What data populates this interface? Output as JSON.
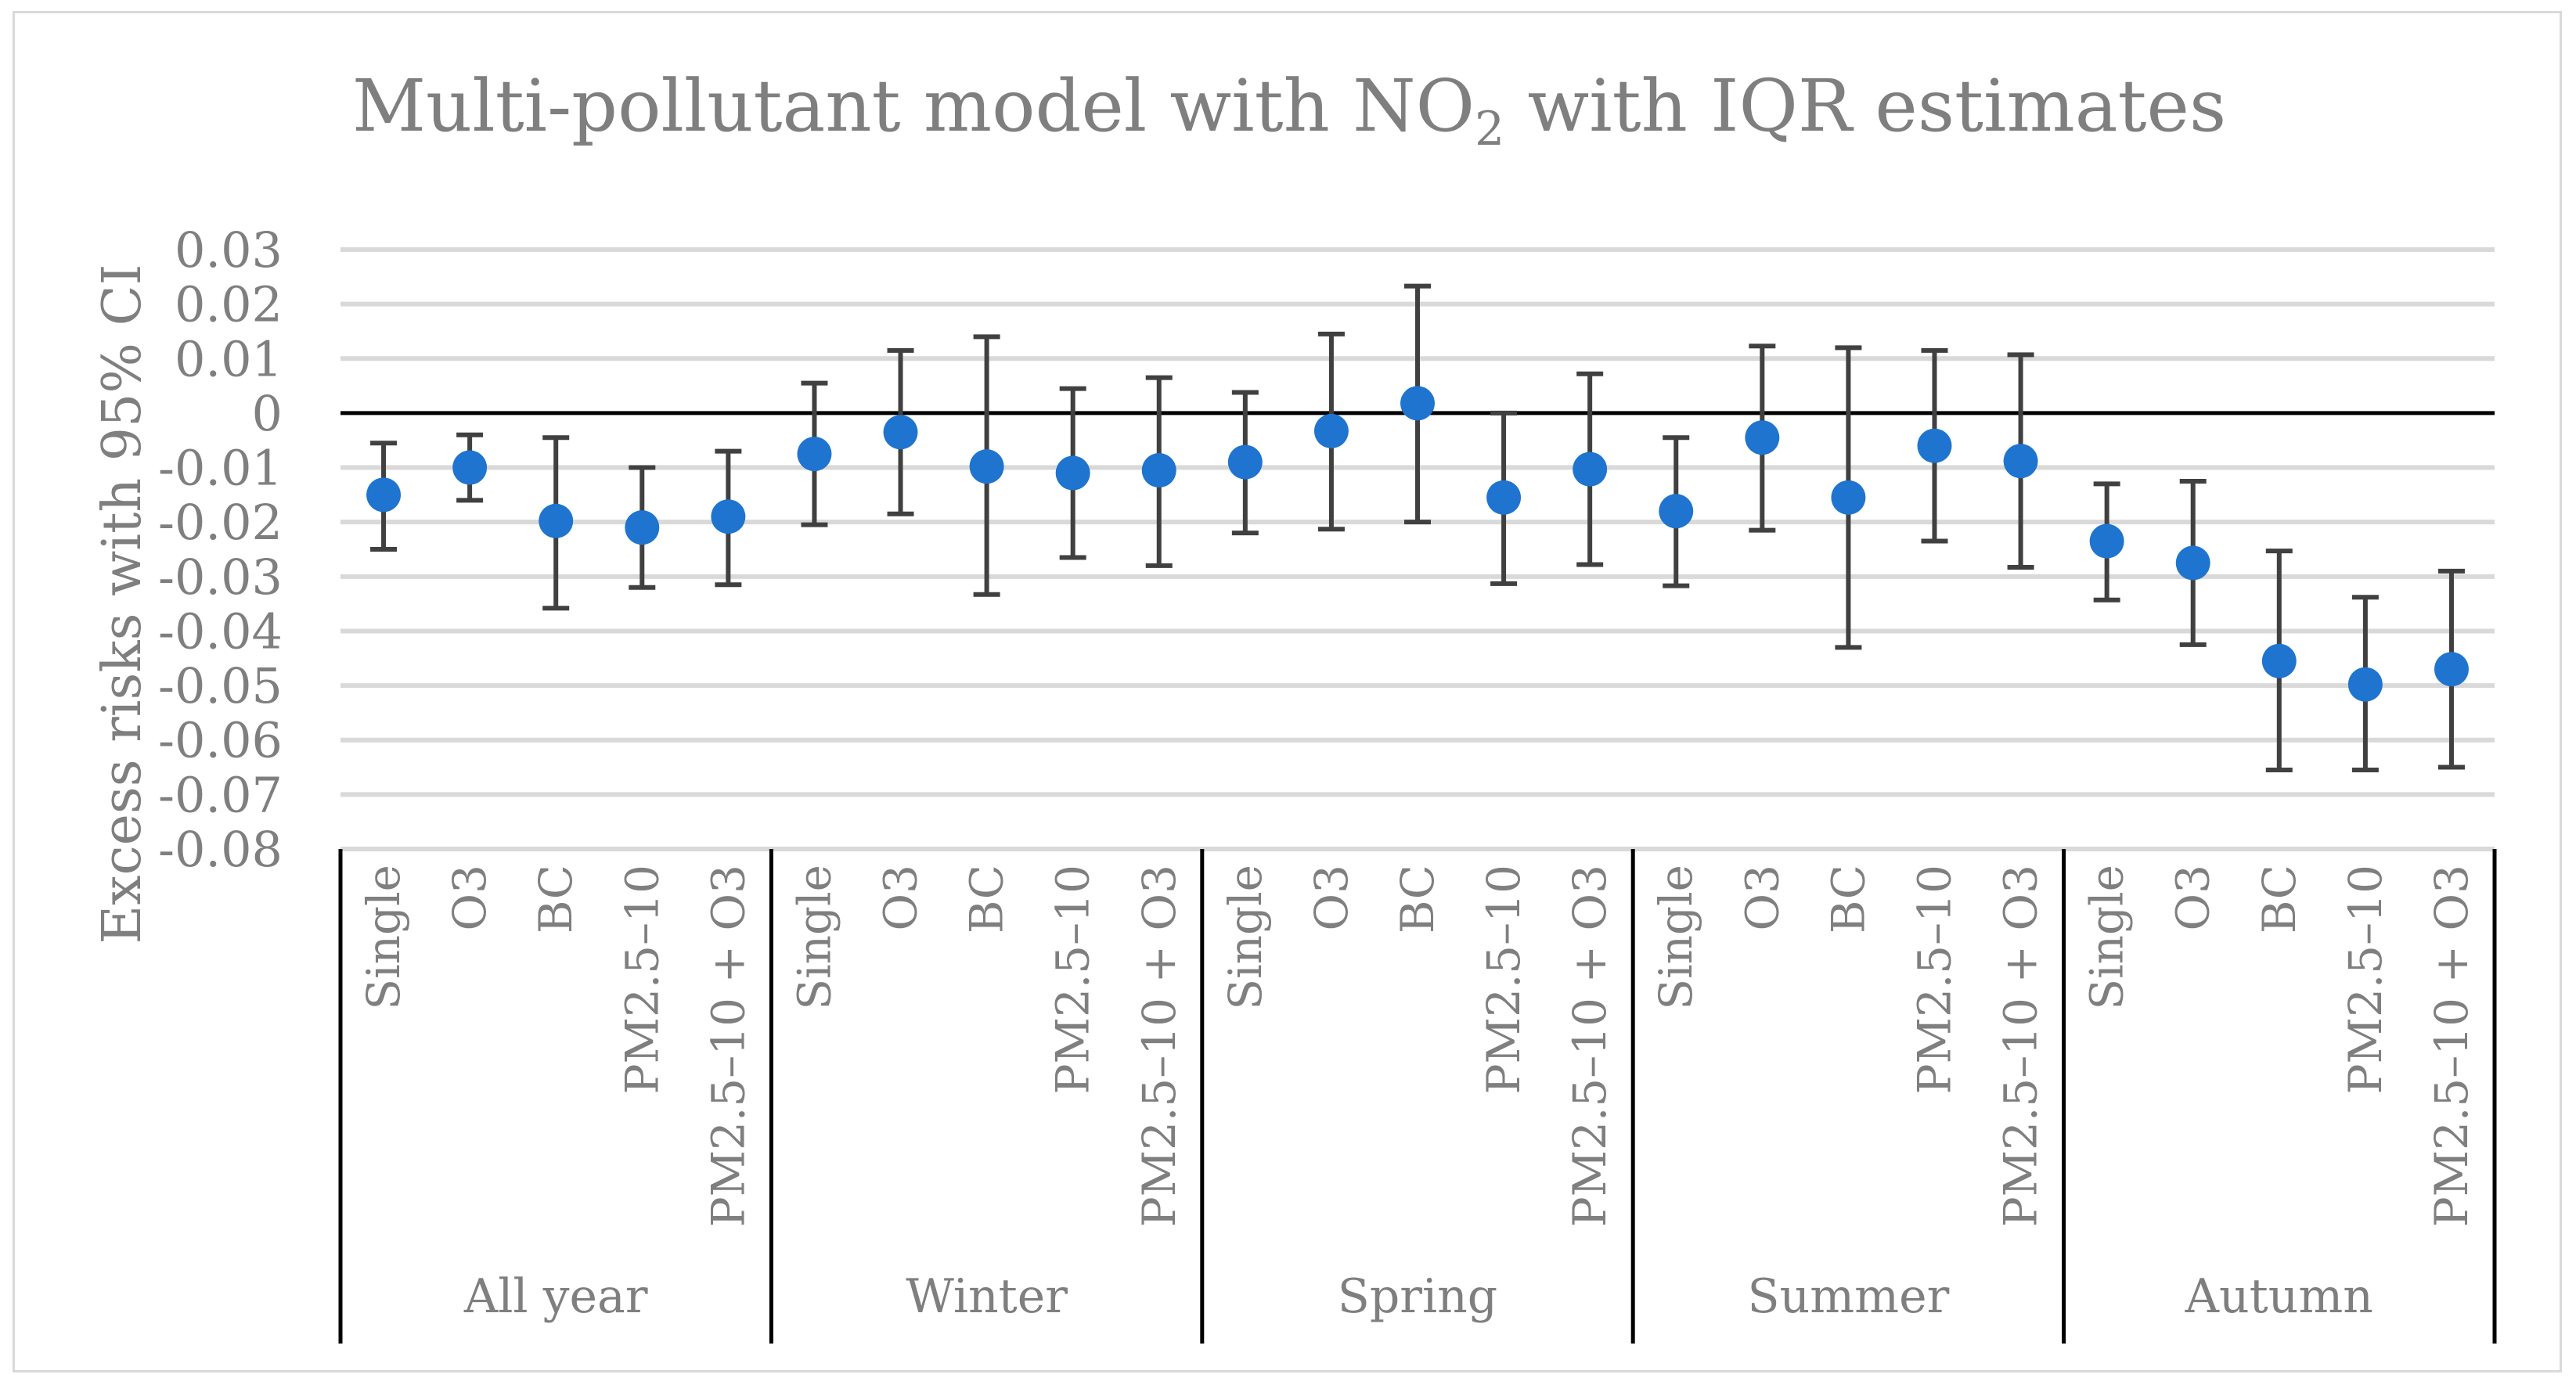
{
  "chart_data": {
    "type": "scatter",
    "title_main": "Multi-pollutant model with NO",
    "title_sub": "2",
    "title_tail": " with IQR estimates",
    "ylabel": "Excess risks with 95% CI",
    "xlabel": "",
    "ylim": [
      -0.08,
      0.03
    ],
    "yticks": [
      0.03,
      0.02,
      0.01,
      0,
      -0.01,
      -0.02,
      -0.03,
      -0.04,
      -0.05,
      -0.06,
      -0.07,
      -0.08
    ],
    "ytick_labels": [
      "0.03",
      "0.02",
      "0.01",
      "0",
      "-0.01",
      "-0.02",
      "-0.03",
      "-0.04",
      "-0.05",
      "-0.06",
      "-0.07",
      "-0.08"
    ],
    "grid": true,
    "colors": {
      "point": "#1f74d0",
      "errorbar": "#404040",
      "grid": "#d9d9d9",
      "text": "#7f7f7f"
    },
    "groups": [
      {
        "name": "All year",
        "points": [
          {
            "label": "Single",
            "estimate": -0.015,
            "lower": -0.025,
            "upper": -0.0055
          },
          {
            "label": "O3",
            "estimate": -0.01,
            "lower": -0.016,
            "upper": -0.004
          },
          {
            "label": "BC",
            "estimate": -0.0198,
            "lower": -0.0358,
            "upper": -0.0045
          },
          {
            "label": "PM2.5–10",
            "estimate": -0.021,
            "lower": -0.032,
            "upper": -0.01
          },
          {
            "label": "PM2.5–10 + O3",
            "estimate": -0.019,
            "lower": -0.0315,
            "upper": -0.007
          }
        ]
      },
      {
        "name": "Winter",
        "points": [
          {
            "label": "Single",
            "estimate": -0.0075,
            "lower": -0.0205,
            "upper": 0.0055
          },
          {
            "label": "O3",
            "estimate": -0.0035,
            "lower": -0.0185,
            "upper": 0.0115
          },
          {
            "label": "BC",
            "estimate": -0.0098,
            "lower": -0.0333,
            "upper": 0.014
          },
          {
            "label": "PM2.5–10",
            "estimate": -0.011,
            "lower": -0.0265,
            "upper": 0.0045
          },
          {
            "label": "PM2.5–10 + O3",
            "estimate": -0.0105,
            "lower": -0.028,
            "upper": 0.0065
          }
        ]
      },
      {
        "name": "Spring",
        "points": [
          {
            "label": "Single",
            "estimate": -0.009,
            "lower": -0.022,
            "upper": 0.0038
          },
          {
            "label": "O3",
            "estimate": -0.0033,
            "lower": -0.0213,
            "upper": 0.0145
          },
          {
            "label": "BC",
            "estimate": 0.0018,
            "lower": -0.02,
            "upper": 0.0233
          },
          {
            "label": "PM2.5–10",
            "estimate": -0.0155,
            "lower": -0.0313,
            "upper": 0.0
          },
          {
            "label": "PM2.5–10 + O3",
            "estimate": -0.0103,
            "lower": -0.0278,
            "upper": 0.0072
          }
        ]
      },
      {
        "name": "Summer",
        "points": [
          {
            "label": "Single",
            "estimate": -0.018,
            "lower": -0.0317,
            "upper": -0.0045
          },
          {
            "label": "O3",
            "estimate": -0.0045,
            "lower": -0.0215,
            "upper": 0.0123
          },
          {
            "label": "BC",
            "estimate": -0.0155,
            "lower": -0.043,
            "upper": 0.012
          },
          {
            "label": "PM2.5–10",
            "estimate": -0.006,
            "lower": -0.0235,
            "upper": 0.0115
          },
          {
            "label": "PM2.5–10 + O3",
            "estimate": -0.0088,
            "lower": -0.0283,
            "upper": 0.0107
          }
        ]
      },
      {
        "name": "Autumn",
        "points": [
          {
            "label": "Single",
            "estimate": -0.0235,
            "lower": -0.0343,
            "upper": -0.013
          },
          {
            "label": "O3",
            "estimate": -0.0275,
            "lower": -0.0425,
            "upper": -0.0125
          },
          {
            "label": "BC",
            "estimate": -0.0455,
            "lower": -0.0655,
            "upper": -0.0253
          },
          {
            "label": "PM2.5–10",
            "estimate": -0.0498,
            "lower": -0.0655,
            "upper": -0.0338
          },
          {
            "label": "PM2.5–10 + O3",
            "estimate": -0.047,
            "lower": -0.065,
            "upper": -0.029
          }
        ]
      }
    ]
  }
}
